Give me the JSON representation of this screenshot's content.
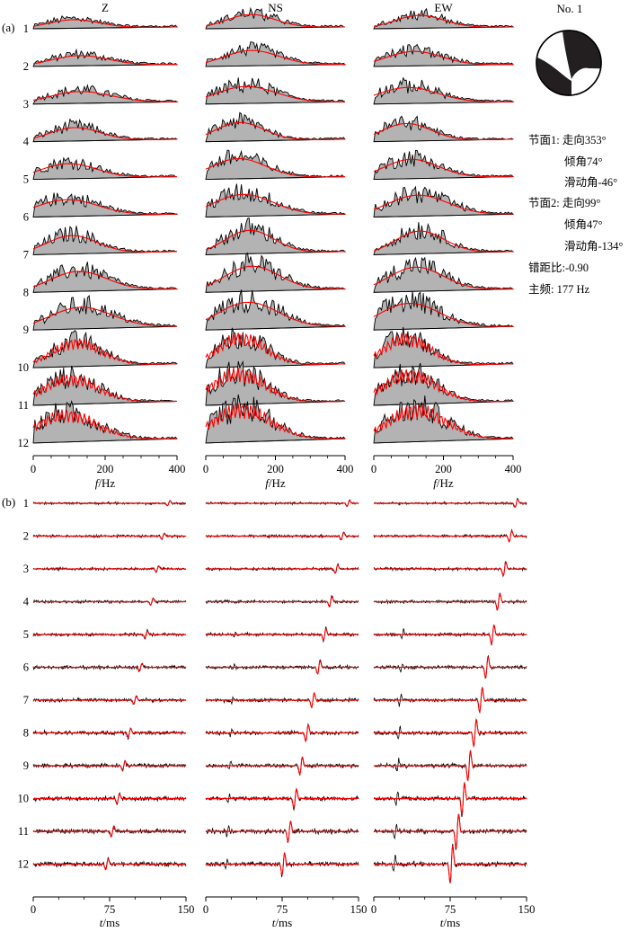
{
  "chart_data": [
    {
      "type": "line",
      "panel_label": "(a)",
      "description_kind": "amplitude spectra, observed (black, grey fill) vs synthetic (red)",
      "columns": [
        "Z",
        "NS",
        "EW"
      ],
      "stations": [
        "1",
        "2",
        "3",
        "4",
        "5",
        "6",
        "7",
        "8",
        "9",
        "10",
        "11",
        "12"
      ],
      "xlabel_italic": "f",
      "xlabel_unit": "/Hz",
      "xlim": [
        0,
        400
      ],
      "xticks": [
        "0",
        "200",
        "400"
      ],
      "xtick_values": [
        0,
        200,
        400
      ],
      "series": [
        {
          "name": "observed",
          "color": "#000000"
        },
        {
          "name": "synthetic",
          "color": "#ff0000"
        }
      ]
    },
    {
      "type": "line",
      "panel_label": "(b)",
      "description_kind": "waveforms, observed (black) vs synthetic (red)",
      "columns": [
        "Z",
        "NS",
        "EW"
      ],
      "stations": [
        "1",
        "2",
        "3",
        "4",
        "5",
        "6",
        "7",
        "8",
        "9",
        "10",
        "11",
        "12"
      ],
      "xlabel_italic": "t",
      "xlabel_unit": "/ms",
      "xlim": [
        0,
        150
      ],
      "xticks": [
        "0",
        "75",
        "150"
      ],
      "xtick_values": [
        0,
        75,
        150
      ],
      "series": [
        {
          "name": "observed",
          "color": "#000000"
        },
        {
          "name": "synthetic",
          "color": "#ff0000"
        }
      ]
    }
  ],
  "event": {
    "title": "No. 1",
    "plane1_label": "节面1: ",
    "plane1_strike": "走向353°",
    "plane1_dip": "倾角74°",
    "plane1_rake": "滑动角-46°",
    "plane2_label": "节面2: ",
    "plane2_strike": "走向99°",
    "plane2_dip": "倾角47°",
    "plane2_rake": "滑动角-134°",
    "offset_ratio": "错距比:-0.90",
    "dominant_freq": "主频: 177 Hz"
  }
}
